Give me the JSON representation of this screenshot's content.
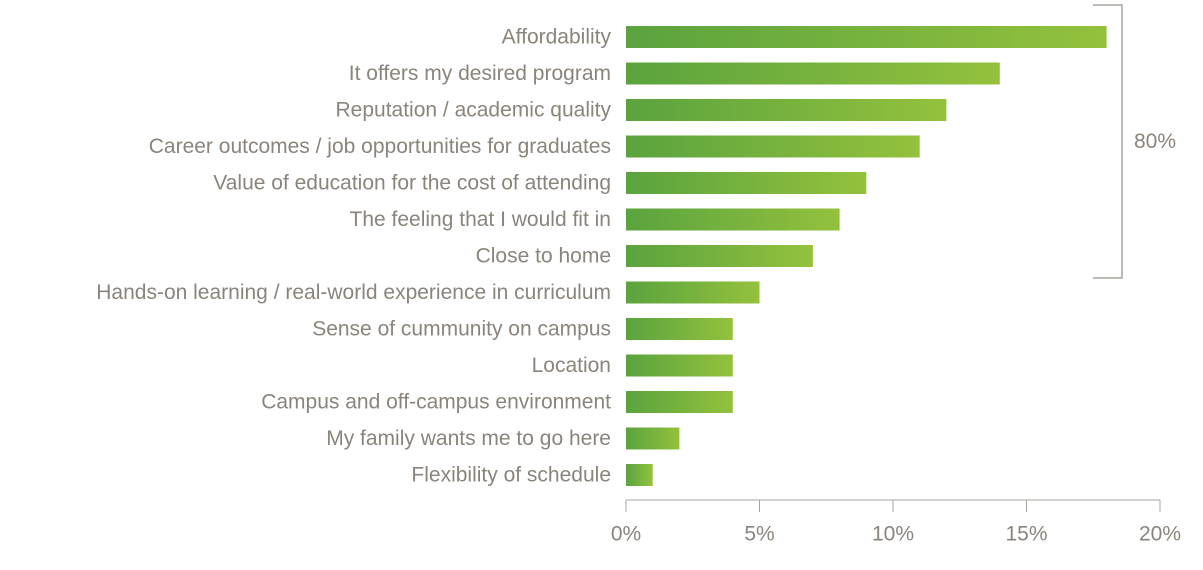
{
  "chart_data": {
    "type": "bar",
    "orientation": "horizontal",
    "title": "",
    "xlabel": "",
    "ylabel": "",
    "categories": [
      "Affordability",
      "It offers my desired program",
      "Reputation / academic quality",
      "Career outcomes / job opportunities for graduates",
      "Value of education for the cost of attending",
      "The feeling that I would fit in",
      "Close to home",
      "Hands-on learning / real-world experience in curriculum",
      "Sense of cummunity on campus",
      "Location",
      "Campus and off-campus environment",
      "My family wants me to go here",
      "Flexibility of schedule"
    ],
    "values": [
      18,
      14,
      12,
      11,
      9,
      8,
      7,
      5,
      4,
      4,
      4,
      2,
      1
    ],
    "xlim": [
      0,
      20
    ],
    "xticks": [
      0,
      5,
      10,
      15,
      20
    ],
    "xtick_labels": [
      "0%",
      "5%",
      "10%",
      "15%",
      "20%"
    ],
    "grid": false,
    "legend": "none",
    "bar_gradient": [
      "#5aa33e",
      "#94c13d"
    ],
    "annotation": {
      "text": "80%",
      "spans_categories": [
        0,
        6
      ]
    }
  }
}
